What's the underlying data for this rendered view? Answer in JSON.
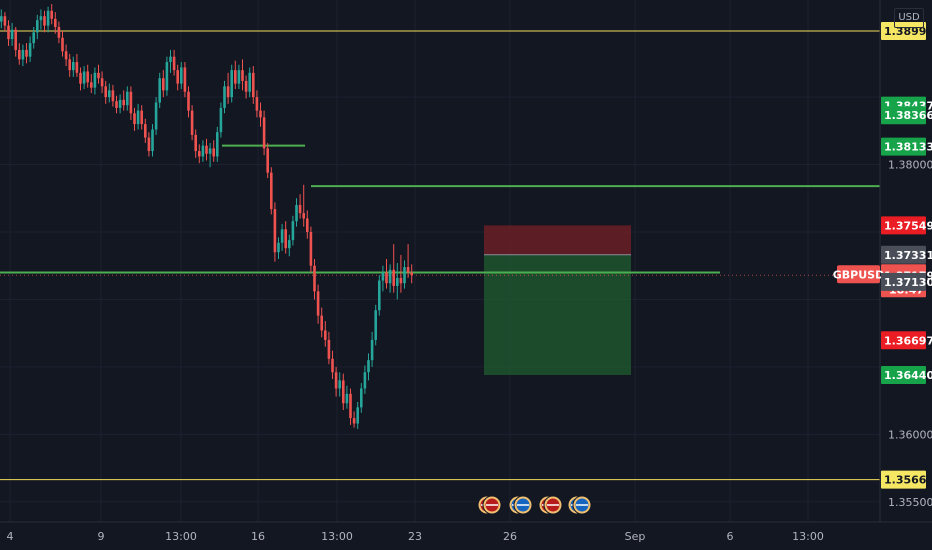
{
  "currency_label": "USD",
  "symbol": "GBPUSD",
  "countdown": "18:47",
  "colors": {
    "background": "#131722",
    "up": "#26a69a",
    "down": "#ef5350",
    "green_line": "#4caf50",
    "yellow_line": "#f0dc5a",
    "tp_zone": "#1f5d2f",
    "sl_zone": "#6b1f24"
  },
  "chart_data": {
    "type": "candlestick",
    "ylim": [
      1.3535,
      1.3922
    ],
    "x_ticks": [
      "4",
      "9",
      "13:00",
      "16",
      "13:00",
      "23",
      "26",
      "Sep",
      "6",
      "13:00"
    ],
    "y_ticks": [
      "1.38000",
      "1.36000",
      "1.35500"
    ],
    "price_tags": [
      {
        "value": "1.38990",
        "price": 1.3899,
        "style": "yellow"
      },
      {
        "value": "1.38437",
        "price": 1.38437,
        "style": "green"
      },
      {
        "value": "1.38366",
        "price": 1.38366,
        "style": "green"
      },
      {
        "value": "1.38133",
        "price": 1.38133,
        "style": "green"
      },
      {
        "value": "1.37549",
        "price": 1.37549,
        "style": "red"
      },
      {
        "value": "1.37331",
        "price": 1.37331,
        "style": "gray"
      },
      {
        "value": "1.37179",
        "price": 1.37179,
        "style": "current"
      },
      {
        "value": "1.37130",
        "price": 1.3713,
        "style": "gray"
      },
      {
        "value": "1.36697",
        "price": 1.36697,
        "style": "red"
      },
      {
        "value": "1.36440",
        "price": 1.3644,
        "style": "green"
      },
      {
        "value": "1.35664",
        "price": 1.35664,
        "style": "yellow"
      }
    ],
    "horizontal_lines": [
      {
        "price": 1.3899,
        "color": "yellow",
        "from_bar": 0,
        "to_bar": "end"
      },
      {
        "price": 1.35664,
        "color": "yellow",
        "from_bar": 0,
        "to_bar": "end"
      },
      {
        "price": 1.3784,
        "color": "green",
        "from_bar": 90,
        "to_bar": "end"
      },
      {
        "price": 1.372,
        "color": "green",
        "from_bar": 0,
        "to_bar": 210
      },
      {
        "price": 1.3814,
        "color": "green",
        "from_bar": 64,
        "to_bar": 88
      }
    ],
    "position": {
      "type": "short",
      "entry": 1.37331,
      "stop": 1.37549,
      "target": 1.3644,
      "from_bar": 140,
      "to_bar": 183
    },
    "candles": [
      [
        1.3906,
        1.3915,
        1.3901,
        1.391
      ],
      [
        1.391,
        1.3913,
        1.3899,
        1.3903
      ],
      [
        1.3903,
        1.3907,
        1.3888,
        1.3893
      ],
      [
        1.3893,
        1.3905,
        1.3888,
        1.39
      ],
      [
        1.39,
        1.3902,
        1.388,
        1.3885
      ],
      [
        1.3885,
        1.389,
        1.3874,
        1.3878
      ],
      [
        1.3878,
        1.3889,
        1.3873,
        1.3885
      ],
      [
        1.3885,
        1.389,
        1.3875,
        1.388
      ],
      [
        1.388,
        1.3895,
        1.3876,
        1.389
      ],
      [
        1.389,
        1.3902,
        1.3886,
        1.3898
      ],
      [
        1.3898,
        1.3911,
        1.3893,
        1.3907
      ],
      [
        1.3907,
        1.3915,
        1.39,
        1.391
      ],
      [
        1.391,
        1.3914,
        1.3898,
        1.3903
      ],
      [
        1.3903,
        1.3917,
        1.3898,
        1.3914
      ],
      [
        1.3914,
        1.3919,
        1.3904,
        1.3908
      ],
      [
        1.3908,
        1.3913,
        1.3897,
        1.3902
      ],
      [
        1.3902,
        1.3906,
        1.389,
        1.3894
      ],
      [
        1.3894,
        1.3899,
        1.388,
        1.3884
      ],
      [
        1.3884,
        1.3889,
        1.3873,
        1.3878
      ],
      [
        1.3878,
        1.3882,
        1.3865,
        1.387
      ],
      [
        1.387,
        1.388,
        1.3865,
        1.3876
      ],
      [
        1.3876,
        1.3882,
        1.3865,
        1.3868
      ],
      [
        1.3868,
        1.3872,
        1.3855,
        1.386
      ],
      [
        1.386,
        1.3873,
        1.3856,
        1.3869
      ],
      [
        1.3869,
        1.3874,
        1.3857,
        1.3861
      ],
      [
        1.3861,
        1.3867,
        1.3853,
        1.3857
      ],
      [
        1.3857,
        1.3872,
        1.3852,
        1.3868
      ],
      [
        1.3868,
        1.3874,
        1.386,
        1.3864
      ],
      [
        1.3864,
        1.3869,
        1.3853,
        1.3858
      ],
      [
        1.3858,
        1.3862,
        1.3845,
        1.385
      ],
      [
        1.385,
        1.386,
        1.3846,
        1.3855
      ],
      [
        1.3855,
        1.3859,
        1.3843,
        1.3847
      ],
      [
        1.3847,
        1.3851,
        1.3838,
        1.3842
      ],
      [
        1.3842,
        1.3852,
        1.3838,
        1.3848
      ],
      [
        1.3848,
        1.3855,
        1.384,
        1.3844
      ],
      [
        1.3844,
        1.3858,
        1.384,
        1.3854
      ],
      [
        1.3854,
        1.3858,
        1.3833,
        1.3838
      ],
      [
        1.3838,
        1.3842,
        1.3825,
        1.383
      ],
      [
        1.383,
        1.3845,
        1.3826,
        1.384
      ],
      [
        1.384,
        1.3844,
        1.3826,
        1.383
      ],
      [
        1.383,
        1.3834,
        1.3816,
        1.382
      ],
      [
        1.382,
        1.3824,
        1.3806,
        1.381
      ],
      [
        1.381,
        1.383,
        1.3806,
        1.3826
      ],
      [
        1.3826,
        1.385,
        1.3822,
        1.3846
      ],
      [
        1.3846,
        1.3868,
        1.3842,
        1.3864
      ],
      [
        1.3864,
        1.387,
        1.385,
        1.3855
      ],
      [
        1.3855,
        1.388,
        1.3851,
        1.3876
      ],
      [
        1.3876,
        1.3885,
        1.3868,
        1.388
      ],
      [
        1.388,
        1.3885,
        1.3866,
        1.387
      ],
      [
        1.387,
        1.3874,
        1.3855,
        1.386
      ],
      [
        1.386,
        1.3876,
        1.3856,
        1.3872
      ],
      [
        1.3872,
        1.3876,
        1.385,
        1.3854
      ],
      [
        1.3854,
        1.3858,
        1.3835,
        1.384
      ],
      [
        1.384,
        1.3844,
        1.3818,
        1.3822
      ],
      [
        1.3822,
        1.3826,
        1.3805,
        1.381
      ],
      [
        1.381,
        1.3815,
        1.3801,
        1.3806
      ],
      [
        1.3806,
        1.3818,
        1.3802,
        1.3814
      ],
      [
        1.3814,
        1.3819,
        1.3803,
        1.3808
      ],
      [
        1.3808,
        1.3816,
        1.3798,
        1.3812
      ],
      [
        1.3812,
        1.3818,
        1.3802,
        1.3806
      ],
      [
        1.3806,
        1.3828,
        1.3802,
        1.3824
      ],
      [
        1.3824,
        1.3846,
        1.382,
        1.3842
      ],
      [
        1.3842,
        1.3862,
        1.3838,
        1.3858
      ],
      [
        1.3858,
        1.3868,
        1.3845,
        1.385
      ],
      [
        1.385,
        1.3874,
        1.3846,
        1.387
      ],
      [
        1.387,
        1.3877,
        1.3856,
        1.386
      ],
      [
        1.386,
        1.3874,
        1.3856,
        1.387
      ],
      [
        1.387,
        1.3878,
        1.3855,
        1.3862
      ],
      [
        1.3862,
        1.3866,
        1.3849,
        1.3854
      ],
      [
        1.3854,
        1.3872,
        1.385,
        1.3868
      ],
      [
        1.3868,
        1.3873,
        1.3845,
        1.385
      ],
      [
        1.385,
        1.3855,
        1.3835,
        1.384
      ],
      [
        1.384,
        1.3846,
        1.3828,
        1.3835
      ],
      [
        1.3835,
        1.384,
        1.3807,
        1.3812
      ],
      [
        1.3812,
        1.3816,
        1.379,
        1.3794
      ],
      [
        1.3794,
        1.3798,
        1.3763,
        1.3767
      ],
      [
        1.3767,
        1.3772,
        1.3728,
        1.3735
      ],
      [
        1.3735,
        1.3746,
        1.373,
        1.3742
      ],
      [
        1.3742,
        1.3756,
        1.3736,
        1.3752
      ],
      [
        1.3752,
        1.3758,
        1.3734,
        1.3738
      ],
      [
        1.3738,
        1.3748,
        1.3732,
        1.3744
      ],
      [
        1.3744,
        1.3762,
        1.374,
        1.3758
      ],
      [
        1.3758,
        1.3775,
        1.3754,
        1.377
      ],
      [
        1.377,
        1.3778,
        1.376,
        1.3764
      ],
      [
        1.3764,
        1.3785,
        1.3754,
        1.376
      ],
      [
        1.376,
        1.3766,
        1.3745,
        1.375
      ],
      [
        1.375,
        1.3754,
        1.372,
        1.3725
      ],
      [
        1.3725,
        1.373,
        1.37,
        1.3706
      ],
      [
        1.3706,
        1.3711,
        1.3682,
        1.3688
      ],
      [
        1.3688,
        1.3694,
        1.3672,
        1.3677
      ],
      [
        1.3677,
        1.3684,
        1.3665,
        1.367
      ],
      [
        1.367,
        1.3676,
        1.3652,
        1.3656
      ],
      [
        1.3656,
        1.3662,
        1.3641,
        1.3646
      ],
      [
        1.3646,
        1.365,
        1.3628,
        1.3634
      ],
      [
        1.3634,
        1.3646,
        1.3628,
        1.364
      ],
      [
        1.364,
        1.3645,
        1.3618,
        1.3623
      ],
      [
        1.3623,
        1.3636,
        1.3619,
        1.363
      ],
      [
        1.363,
        1.3634,
        1.3607,
        1.3612
      ],
      [
        1.3612,
        1.3617,
        1.3605,
        1.3608
      ],
      [
        1.3608,
        1.3624,
        1.3604,
        1.362
      ],
      [
        1.362,
        1.3638,
        1.3616,
        1.3634
      ],
      [
        1.3634,
        1.3651,
        1.363,
        1.3646
      ],
      [
        1.3646,
        1.366,
        1.364,
        1.3655
      ],
      [
        1.3655,
        1.3676,
        1.365,
        1.367
      ],
      [
        1.367,
        1.3696,
        1.3666,
        1.3692
      ],
      [
        1.3692,
        1.3718,
        1.3688,
        1.3714
      ],
      [
        1.3714,
        1.3725,
        1.3706,
        1.372
      ],
      [
        1.372,
        1.373,
        1.3708,
        1.3712
      ],
      [
        1.3712,
        1.3726,
        1.3705,
        1.3722
      ],
      [
        1.3722,
        1.3741,
        1.3705,
        1.371
      ],
      [
        1.371,
        1.3727,
        1.37,
        1.3716
      ],
      [
        1.3716,
        1.3733,
        1.3705,
        1.3712
      ],
      [
        1.3712,
        1.3729,
        1.3708,
        1.3724
      ],
      [
        1.3724,
        1.3741,
        1.3716,
        1.372
      ],
      [
        1.372,
        1.3726,
        1.3712,
        1.3718
      ]
    ]
  }
}
